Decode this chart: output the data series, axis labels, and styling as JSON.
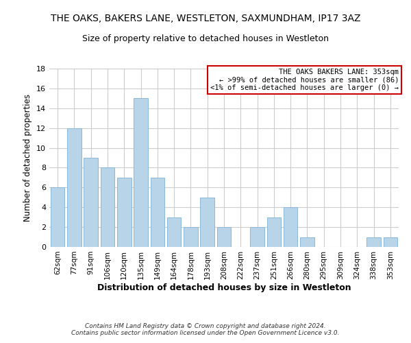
{
  "title": "THE OAKS, BAKERS LANE, WESTLETON, SAXMUNDHAM, IP17 3AZ",
  "subtitle": "Size of property relative to detached houses in Westleton",
  "xlabel": "Distribution of detached houses by size in Westleton",
  "ylabel": "Number of detached properties",
  "bar_color": "#b8d4e8",
  "bar_edge_color": "#8ab8d8",
  "categories": [
    "62sqm",
    "77sqm",
    "91sqm",
    "106sqm",
    "120sqm",
    "135sqm",
    "149sqm",
    "164sqm",
    "178sqm",
    "193sqm",
    "208sqm",
    "222sqm",
    "237sqm",
    "251sqm",
    "266sqm",
    "280sqm",
    "295sqm",
    "309sqm",
    "324sqm",
    "338sqm",
    "353sqm"
  ],
  "values": [
    6,
    12,
    9,
    8,
    7,
    15,
    7,
    3,
    2,
    5,
    2,
    0,
    2,
    3,
    4,
    1,
    0,
    0,
    0,
    1,
    1
  ],
  "ylim": [
    0,
    18
  ],
  "yticks": [
    0,
    2,
    4,
    6,
    8,
    10,
    12,
    14,
    16,
    18
  ],
  "legend_title": "THE OAKS BAKERS LANE: 353sqm",
  "legend_line1": "← >99% of detached houses are smaller (86)",
  "legend_line2": "<1% of semi-detached houses are larger (0) →",
  "legend_border_color": "#cc0000",
  "footer_line1": "Contains HM Land Registry data © Crown copyright and database right 2024.",
  "footer_line2": "Contains public sector information licensed under the Open Government Licence v3.0.",
  "grid_color": "#cccccc",
  "background_color": "#ffffff"
}
